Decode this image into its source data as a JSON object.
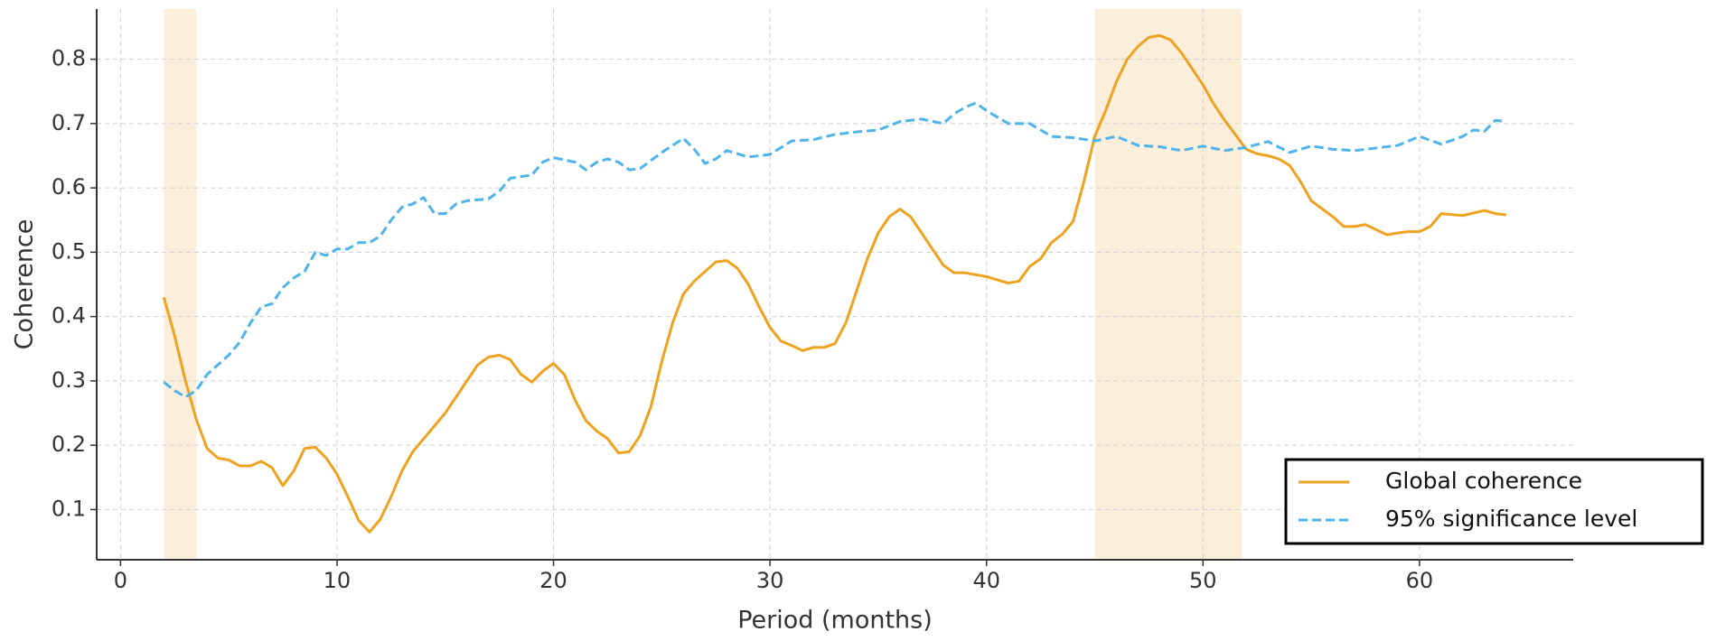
{
  "chart_data": {
    "type": "line",
    "xlabel": "Period (months)",
    "ylabel": "Coherence",
    "xlim": [
      -1.1,
      67.1
    ],
    "ylim": [
      0.022,
      0.878
    ],
    "xticks": [
      0,
      10,
      20,
      30,
      40,
      50,
      60
    ],
    "yticks": [
      0.1,
      0.2,
      0.3,
      0.4,
      0.5,
      0.6,
      0.7,
      0.8
    ],
    "grid": true,
    "legend": "lower right",
    "highlights": [
      [
        2,
        3.5
      ],
      [
        45,
        51.8
      ]
    ],
    "highlight_color": "#fbefdc",
    "series": [
      {
        "name": "Global coherence",
        "color": "#eea21f",
        "style": "solid",
        "x": [
          2,
          2.5,
          3,
          3.5,
          4,
          4.5,
          5,
          5.5,
          6,
          6.5,
          7,
          7.5,
          8,
          8.5,
          9,
          9.5,
          10,
          10.5,
          11,
          11.5,
          12,
          12.5,
          13,
          13.5,
          14,
          15,
          16,
          16.5,
          17,
          17.5,
          18,
          18.5,
          19,
          19.5,
          20,
          20.5,
          21,
          21.5,
          22,
          22.5,
          23,
          23.5,
          24,
          24.5,
          25,
          25.5,
          26,
          26.5,
          27,
          27.5,
          28,
          28.5,
          29,
          29.5,
          30,
          30.5,
          31,
          31.5,
          32,
          32.5,
          33,
          33.5,
          34,
          34.5,
          35,
          35.5,
          36,
          36.5,
          37,
          37.5,
          38,
          38.5,
          39,
          40,
          41,
          41.5,
          42,
          42.5,
          43,
          43.5,
          44,
          44.5,
          45,
          45.5,
          46,
          46.5,
          47,
          47.5,
          48,
          48.5,
          49,
          50,
          50.5,
          51,
          52,
          52.5,
          53,
          53.5,
          54,
          54.5,
          55,
          56,
          56.5,
          57,
          57.5,
          58,
          58.5,
          59,
          59.5,
          60,
          60.5,
          61,
          62,
          63,
          63.5,
          64
        ],
        "values": [
          0.43,
          0.37,
          0.3,
          0.24,
          0.195,
          0.18,
          0.177,
          0.168,
          0.168,
          0.175,
          0.165,
          0.137,
          0.16,
          0.195,
          0.197,
          0.18,
          0.155,
          0.12,
          0.083,
          0.065,
          0.085,
          0.12,
          0.16,
          0.19,
          0.21,
          0.25,
          0.3,
          0.325,
          0.337,
          0.34,
          0.333,
          0.31,
          0.298,
          0.315,
          0.327,
          0.31,
          0.27,
          0.238,
          0.222,
          0.21,
          0.188,
          0.19,
          0.215,
          0.26,
          0.33,
          0.39,
          0.435,
          0.455,
          0.47,
          0.485,
          0.487,
          0.475,
          0.45,
          0.415,
          0.383,
          0.362,
          0.355,
          0.347,
          0.352,
          0.352,
          0.358,
          0.39,
          0.44,
          0.49,
          0.53,
          0.555,
          0.567,
          0.555,
          0.53,
          0.505,
          0.48,
          0.468,
          0.468,
          0.462,
          0.452,
          0.455,
          0.478,
          0.49,
          0.515,
          0.528,
          0.548,
          0.61,
          0.68,
          0.72,
          0.765,
          0.8,
          0.82,
          0.834,
          0.837,
          0.83,
          0.81,
          0.76,
          0.73,
          0.705,
          0.66,
          0.653,
          0.65,
          0.645,
          0.635,
          0.61,
          0.58,
          0.555,
          0.54,
          0.54,
          0.543,
          0.535,
          0.527,
          0.53,
          0.532,
          0.532,
          0.54,
          0.56,
          0.557,
          0.565,
          0.56,
          0.558
        ]
      },
      {
        "name": "95% significance level",
        "color": "#4fb4ea",
        "style": "dashed",
        "x": [
          2,
          2.5,
          3,
          3.5,
          4,
          5,
          5.5,
          6,
          6.5,
          7,
          7.5,
          8,
          8.5,
          9,
          9.5,
          10,
          10.5,
          11,
          11.5,
          12,
          12.5,
          13,
          13.5,
          14,
          14.5,
          15,
          15.5,
          16,
          17,
          17.5,
          18,
          19,
          19.5,
          20,
          21,
          21.5,
          22,
          22.5,
          23,
          23.5,
          24,
          25,
          26,
          26.5,
          27,
          27.5,
          28,
          29,
          30,
          31,
          32,
          33,
          34,
          35,
          36,
          37,
          38,
          38.5,
          39,
          39.5,
          40,
          41,
          42,
          43,
          44,
          45,
          46,
          47,
          48,
          49,
          50,
          51,
          52,
          53,
          54,
          55,
          56,
          57,
          58,
          59,
          60,
          61,
          62,
          62.5,
          63,
          63.5,
          64
        ],
        "values": [
          0.298,
          0.285,
          0.275,
          0.285,
          0.31,
          0.34,
          0.36,
          0.39,
          0.415,
          0.42,
          0.445,
          0.46,
          0.47,
          0.5,
          0.495,
          0.505,
          0.505,
          0.515,
          0.515,
          0.525,
          0.55,
          0.57,
          0.575,
          0.585,
          0.56,
          0.56,
          0.575,
          0.58,
          0.583,
          0.595,
          0.615,
          0.62,
          0.64,
          0.647,
          0.64,
          0.628,
          0.64,
          0.645,
          0.64,
          0.628,
          0.63,
          0.655,
          0.677,
          0.66,
          0.638,
          0.645,
          0.658,
          0.648,
          0.652,
          0.673,
          0.675,
          0.683,
          0.687,
          0.69,
          0.703,
          0.707,
          0.7,
          0.715,
          0.725,
          0.732,
          0.72,
          0.7,
          0.7,
          0.68,
          0.678,
          0.673,
          0.68,
          0.666,
          0.664,
          0.658,
          0.665,
          0.658,
          0.663,
          0.672,
          0.655,
          0.665,
          0.66,
          0.658,
          0.662,
          0.666,
          0.68,
          0.668,
          0.68,
          0.69,
          0.688,
          0.705,
          0.703
        ]
      }
    ]
  }
}
